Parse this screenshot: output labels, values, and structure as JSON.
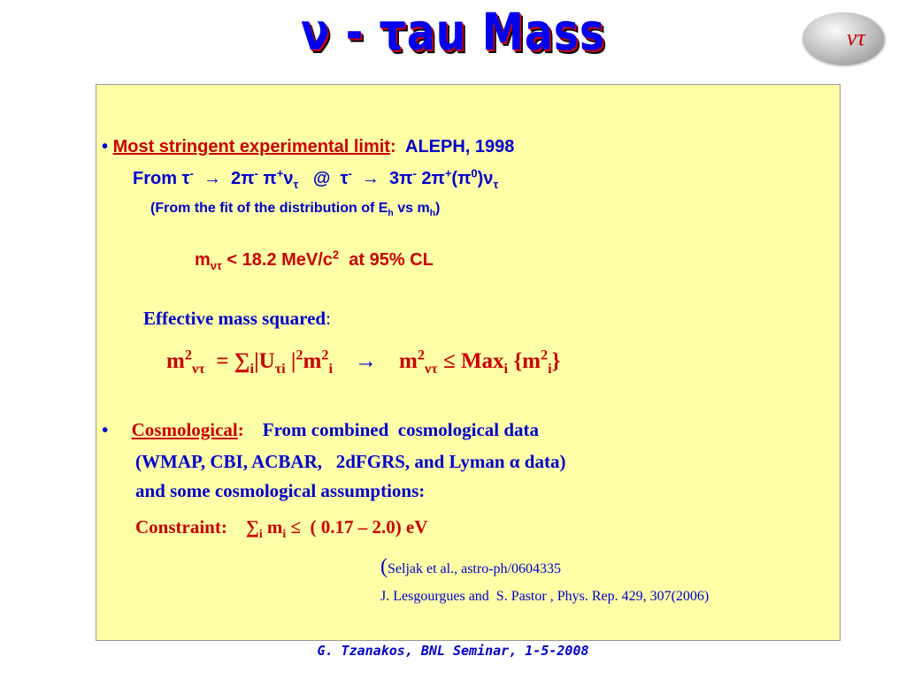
{
  "title": "ν - τau Mass",
  "logo": "ντ",
  "limit": [
    "•",
    "Most stringent experimental limit",
    ":",
    "  ALEPH, 1998"
  ],
  "decay": [
    "From τ",
    "-",
    "  →  2π",
    "-",
    " π",
    "+",
    "ν",
    "τ",
    "   @  τ",
    "-",
    "  →  3π",
    "-",
    " 2π",
    "+",
    "(π",
    "0",
    ")ν",
    "τ"
  ],
  "fit": [
    "(From the fit of the distribution of E",
    "h",
    " vs m",
    "h",
    ")"
  ],
  "bound": [
    "m",
    "ντ",
    " < 18.2 MeV/c",
    "2",
    "  at 95% CL"
  ],
  "effective": [
    "Effective mass squared",
    ":"
  ],
  "formula": [
    "m",
    "2",
    "ντ",
    "  = ∑",
    "i",
    "|U",
    "τi",
    " |",
    "2",
    "m",
    "2",
    "i",
    "    →    ",
    "m",
    "2",
    "ντ",
    " ≤ Max",
    "i",
    " {m",
    "2",
    "i",
    "}"
  ],
  "cosmo": [
    "•",
    "Cosmological",
    ":",
    "    From combined  cosmological data"
  ],
  "cosmo_data": "(WMAP, CBI, ACBAR,   2dFGRS, and Lyman α data)",
  "cosmo_assumptions": "and some cosmological assumptions:",
  "constraint": [
    "Constraint:    ",
    "∑",
    "i",
    " m",
    "i",
    " ≤  ( 0.17 – 2.0) eV"
  ],
  "ref1": [
    "(",
    "Seljak et al., astro-ph/0604335"
  ],
  "ref2": "J. Lesgourgues and  S. Pastor , Phys. Rep. 429, 307(2006)",
  "footer": "G. Tzanakos, BNL Seminar, 1-5-2008"
}
